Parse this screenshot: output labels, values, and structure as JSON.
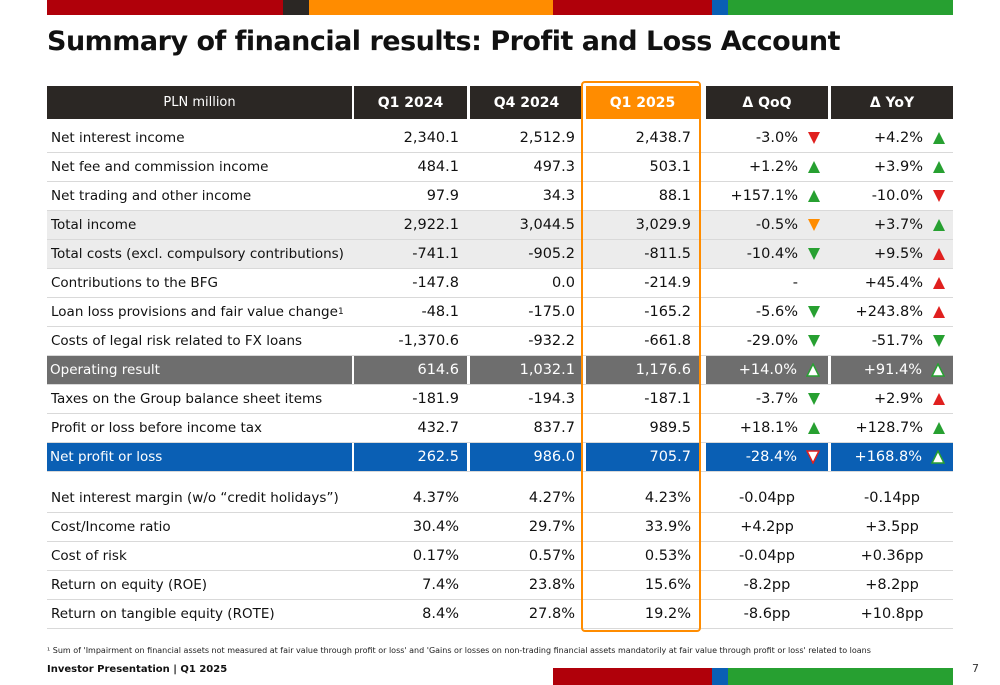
{
  "title": "Summary of financial results: Profit and Loss Account",
  "colors": {
    "dark": "#2b2724",
    "orange": "#ff8c00",
    "red": "#b0000a",
    "blue": "#0a5fb4",
    "green": "#27a031",
    "grey": "#6e6e6e"
  },
  "header": [
    "PLN million",
    "Q1 2024",
    "Q4 2024",
    "Q1 2025",
    "Δ QoQ",
    "Δ YoY"
  ],
  "rows": [
    {
      "label": "Net interest income",
      "v": [
        "2,340.1",
        "2,512.9",
        "2,438.7",
        "-3.0%",
        "+4.2%"
      ]
    },
    {
      "label": "Net fee and commission income",
      "v": [
        "484.1",
        "497.3",
        "503.1",
        "+1.2%",
        "+3.9%"
      ]
    },
    {
      "label": "Net trading and other income",
      "v": [
        "97.9",
        "34.3",
        "88.1",
        "+157.1%",
        "-10.0%"
      ]
    },
    {
      "label": "Total income",
      "v": [
        "2,922.1",
        "3,044.5",
        "3,029.9",
        "-0.5%",
        "+3.7%"
      ]
    },
    {
      "label": "Total costs (excl. compulsory contributions)",
      "v": [
        "-741.1",
        "-905.2",
        "-811.5",
        "-10.4%",
        "+9.5%"
      ]
    },
    {
      "label": "Contributions to the BFG",
      "v": [
        "-147.8",
        "0.0",
        "-214.9",
        "-",
        "+45.4%"
      ]
    },
    {
      "label": "Loan loss provisions and fair value change",
      "sup": "1",
      "v": [
        "-48.1",
        "-175.0",
        "-165.2",
        "-5.6%",
        "+243.8%"
      ]
    },
    {
      "label": "Costs of legal risk related to FX loans",
      "v": [
        "-1,370.6",
        "-932.2",
        "-661.8",
        "-29.0%",
        "-51.7%"
      ]
    },
    {
      "label": "Operating result",
      "v": [
        "614.6",
        "1,032.1",
        "1,176.6",
        "+14.0%",
        "+91.4%"
      ]
    },
    {
      "label": "Taxes on the Group balance sheet items",
      "v": [
        "-181.9",
        "-194.3",
        "-187.1",
        "-3.7%",
        "+2.9%"
      ]
    },
    {
      "label": "Profit or loss before income tax",
      "v": [
        "432.7",
        "837.7",
        "989.5",
        "+18.1%",
        "+128.7%"
      ]
    },
    {
      "label": "Net profit or loss",
      "v": [
        "262.5",
        "986.0",
        "705.7",
        "-28.4%",
        "+168.8%"
      ]
    }
  ],
  "ratios": [
    {
      "label": "Net interest margin (w/o “credit holidays”)",
      "v": [
        "4.37%",
        "4.27%",
        "4.23%",
        "-0.04pp",
        "-0.14pp"
      ]
    },
    {
      "label": "Cost/Income ratio",
      "v": [
        "30.4%",
        "29.7%",
        "33.9%",
        "+4.2pp",
        "+3.5pp"
      ]
    },
    {
      "label": "Cost of risk",
      "v": [
        "0.17%",
        "0.57%",
        "0.53%",
        "-0.04pp",
        "+0.36pp"
      ]
    },
    {
      "label": "Return on equity (ROE)",
      "v": [
        "7.4%",
        "23.8%",
        "15.6%",
        "-8.2pp",
        "+8.2pp"
      ]
    },
    {
      "label": "Return on tangible equity (ROTE)",
      "v": [
        "8.4%",
        "27.8%",
        "19.2%",
        "-8.6pp",
        "+10.8pp"
      ]
    }
  ],
  "footnote": "¹ Sum of 'Impairment on financial assets not measured at fair value through profit or loss' and 'Gains or losses on non-trading financial assets mandatorily at fair value through profit or loss' related to loans",
  "brand": "Investor Presentation  |  Q1 2025",
  "page_number": "7"
}
